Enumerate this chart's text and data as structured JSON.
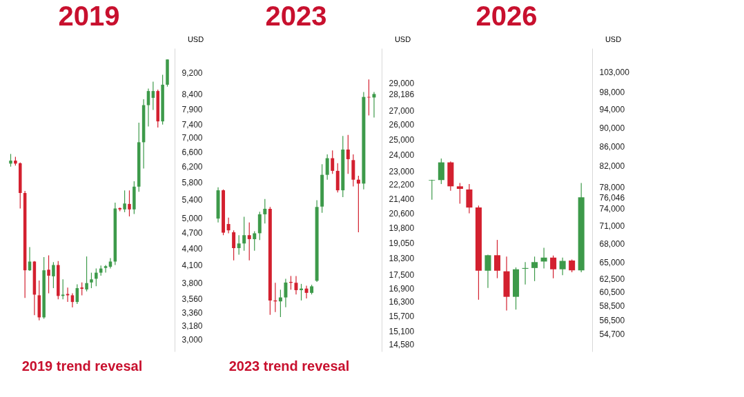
{
  "chart_data": [
    {
      "type": "candlestick",
      "title": "2019",
      "ylabel": "USD",
      "annotations": [
        "2019 trend revesal"
      ],
      "log": true,
      "tick_labels": "y",
      "categories": [
        null,
        null,
        null,
        null,
        null,
        null,
        null,
        null,
        null,
        null,
        null,
        null,
        null,
        null,
        null,
        null,
        null,
        null,
        null,
        null,
        null,
        null,
        null,
        null,
        null,
        null,
        null,
        null,
        null,
        null,
        null,
        null,
        null,
        null
      ],
      "ohlc": [
        [
          6280,
          6540,
          6200,
          6360
        ],
        [
          6360,
          6460,
          6230,
          6280
        ],
        [
          6290,
          6310,
          5200,
          5550
        ],
        [
          5550,
          5600,
          3570,
          4010
        ],
        [
          4010,
          4420,
          4000,
          4160
        ],
        [
          4160,
          4170,
          3320,
          3620
        ],
        [
          3610,
          3840,
          3250,
          3290
        ],
        [
          3290,
          4240,
          3270,
          4010
        ],
        [
          4020,
          4270,
          3640,
          3920
        ],
        [
          3910,
          4150,
          3720,
          4100
        ],
        [
          4100,
          4170,
          3550,
          3600
        ],
        [
          3600,
          3860,
          3550,
          3620
        ],
        [
          3630,
          3730,
          3510,
          3610
        ],
        [
          3610,
          3640,
          3430,
          3510
        ],
        [
          3510,
          3780,
          3480,
          3720
        ],
        [
          3730,
          3810,
          3610,
          3710
        ],
        [
          3700,
          4250,
          3670,
          3800
        ],
        [
          3810,
          3970,
          3720,
          3860
        ],
        [
          3870,
          4040,
          3750,
          3970
        ],
        [
          3970,
          4090,
          3920,
          4040
        ],
        [
          4050,
          4100,
          3970,
          4080
        ],
        [
          4070,
          4220,
          4040,
          4160
        ],
        [
          4160,
          5330,
          4100,
          5200
        ],
        [
          5210,
          5220,
          5140,
          5180
        ],
        [
          5180,
          5610,
          5120,
          5310
        ],
        [
          5300,
          5610,
          5030,
          5180
        ],
        [
          5180,
          5830,
          5080,
          5700
        ],
        [
          5700,
          7460,
          5580,
          6870
        ],
        [
          6870,
          8230,
          6150,
          8030
        ],
        [
          8030,
          8610,
          7340,
          8520
        ],
        [
          8280,
          8860,
          7870,
          8520
        ],
        [
          8520,
          8570,
          7310,
          7500
        ],
        [
          7500,
          9120,
          7400,
          8750
        ],
        [
          8750,
          9730,
          8680,
          9730
        ]
      ],
      "colors": [
        "#3d9a4a",
        "#d3202f",
        "#d3202f",
        "#d3202f",
        "#3d9a4a",
        "#d3202f",
        "#d3202f",
        "#3d9a4a",
        "#d3202f",
        "#3d9a4a",
        "#d3202f",
        "#3d9a4a",
        "#d3202f",
        "#d3202f",
        "#3d9a4a",
        "#d3202f",
        "#3d9a4a",
        "#3d9a4a",
        "#3d9a4a",
        "#3d9a4a",
        "#3d9a4a",
        "#3d9a4a",
        "#3d9a4a",
        "#d3202f",
        "#3d9a4a",
        "#d3202f",
        "#3d9a4a",
        "#3d9a4a",
        "#3d9a4a",
        "#3d9a4a",
        "#3d9a4a",
        "#d3202f",
        "#3d9a4a",
        "#3d9a4a"
      ],
      "ylim": [
        2850,
        10200
      ],
      "yticks": [
        {
          "value": 3000,
          "label": "3,000"
        },
        {
          "value": 3180,
          "label": "3,180"
        },
        {
          "value": 3360,
          "label": "3,360"
        },
        {
          "value": 3560,
          "label": "3,560"
        },
        {
          "value": 3800,
          "label": "3,800"
        },
        {
          "value": 4100,
          "label": "4,100"
        },
        {
          "value": 4400,
          "label": "4,400"
        },
        {
          "value": 4700,
          "label": "4,700"
        },
        {
          "value": 5000,
          "label": "5,000"
        },
        {
          "value": 5400,
          "label": "5,400"
        },
        {
          "value": 5800,
          "label": "5,800"
        },
        {
          "value": 6200,
          "label": "6,200"
        },
        {
          "value": 6600,
          "label": "6,600"
        },
        {
          "value": 7000,
          "label": "7,000"
        },
        {
          "value": 7400,
          "label": "7,400"
        },
        {
          "value": 7900,
          "label": "7,900"
        },
        {
          "value": 8400,
          "label": "8,400"
        },
        {
          "value": 9200,
          "label": "9,200"
        }
      ]
    },
    {
      "type": "candlestick",
      "title": "2023",
      "ylabel": "USD",
      "annotations": [
        "2023 trend revesal"
      ],
      "log": true,
      "tick_labels": "y",
      "categories": [
        null,
        null,
        null,
        null,
        null,
        null,
        null,
        null,
        null,
        null,
        null,
        null,
        null,
        null,
        null,
        null,
        null,
        null,
        null,
        null,
        null,
        null,
        null,
        null,
        null,
        null,
        null,
        null,
        null,
        null,
        null
      ],
      "ohlc": [
        [
          20300,
          22040,
          20090,
          21870
        ],
        [
          21870,
          21920,
          19430,
          19560
        ],
        [
          20010,
          20350,
          19530,
          19680
        ],
        [
          19580,
          19680,
          18180,
          18780
        ],
        [
          18780,
          19430,
          18460,
          19010
        ],
        [
          19010,
          20400,
          18650,
          19430
        ],
        [
          19430,
          20090,
          18180,
          19230
        ],
        [
          19230,
          19630,
          18650,
          19530
        ],
        [
          19530,
          20670,
          19180,
          20530
        ],
        [
          20530,
          21370,
          20040,
          20830
        ],
        [
          20830,
          20930,
          15750,
          16360
        ],
        [
          16360,
          17140,
          15870,
          16320
        ],
        [
          16320,
          16830,
          15660,
          16490
        ],
        [
          16490,
          17320,
          16070,
          17150
        ],
        [
          17180,
          17450,
          16830,
          17140
        ],
        [
          17140,
          17450,
          16620,
          16810
        ],
        [
          16810,
          17090,
          16360,
          16880
        ],
        [
          16880,
          17010,
          16450,
          16690
        ],
        [
          16690,
          17050,
          16620,
          16980
        ],
        [
          17230,
          21310,
          17180,
          20930
        ],
        [
          20950,
          23430,
          20610,
          22780
        ],
        [
          22780,
          24040,
          22490,
          23800
        ],
        [
          23800,
          24290,
          22840,
          23020
        ],
        [
          23020,
          23490,
          21750,
          21870
        ],
        [
          21870,
          25240,
          21480,
          24350
        ],
        [
          24350,
          25310,
          22840,
          23740
        ],
        [
          23680,
          24040,
          22090,
          22490
        ],
        [
          22490,
          22720,
          19580,
          22260
        ],
        [
          22260,
          28330,
          21920,
          27970
        ],
        [
          27970,
          29290,
          26640,
          27930
        ],
        [
          27930,
          28330,
          26500,
          28186
        ]
      ],
      "colors": [
        "#3d9a4a",
        "#d3202f",
        "#d3202f",
        "#d3202f",
        "#3d9a4a",
        "#3d9a4a",
        "#d3202f",
        "#3d9a4a",
        "#3d9a4a",
        "#3d9a4a",
        "#d3202f",
        "#d3202f",
        "#3d9a4a",
        "#3d9a4a",
        "#d3202f",
        "#d3202f",
        "#3d9a4a",
        "#d3202f",
        "#3d9a4a",
        "#3d9a4a",
        "#3d9a4a",
        "#3d9a4a",
        "#d3202f",
        "#d3202f",
        "#3d9a4a",
        "#d3202f",
        "#d3202f",
        "#d3202f",
        "#3d9a4a",
        "#d3202f",
        "#3d9a4a"
      ],
      "ylim": [
        14300,
        31800
      ],
      "yticks": [
        {
          "value": 14580,
          "label": "14,580"
        },
        {
          "value": 15100,
          "label": "15,100"
        },
        {
          "value": 15700,
          "label": "15,700"
        },
        {
          "value": 16300,
          "label": "16,300"
        },
        {
          "value": 16900,
          "label": "16,900"
        },
        {
          "value": 17500,
          "label": "17,500"
        },
        {
          "value": 18300,
          "label": "18,300"
        },
        {
          "value": 19050,
          "label": "19,050"
        },
        {
          "value": 19800,
          "label": "19,800"
        },
        {
          "value": 20600,
          "label": "20,600"
        },
        {
          "value": 21400,
          "label": "21,400"
        },
        {
          "value": 22200,
          "label": "22,200"
        },
        {
          "value": 23000,
          "label": "23,000"
        },
        {
          "value": 24000,
          "label": "24,000"
        },
        {
          "value": 25000,
          "label": "25,000"
        },
        {
          "value": 26000,
          "label": "26,000"
        },
        {
          "value": 27000,
          "label": "27,000"
        },
        {
          "value": 28186,
          "label": "28,186"
        },
        {
          "value": 29000,
          "label": "29,000"
        }
      ]
    },
    {
      "type": "candlestick",
      "title": "2026",
      "ylabel": "USD",
      "log": true,
      "tick_labels": "y",
      "categories": [
        null,
        null,
        null,
        null,
        null,
        null,
        null,
        null,
        null,
        null,
        null,
        null,
        null,
        null,
        null,
        null,
        null
      ],
      "ohlc": [
        [
          79170,
          79360,
          75610,
          79280
        ],
        [
          79280,
          83530,
          78540,
          82740
        ],
        [
          82740,
          82940,
          77250,
          78090
        ],
        [
          78090,
          78720,
          74900,
          77610
        ],
        [
          77500,
          78540,
          73150,
          74190
        ],
        [
          74190,
          74540,
          59380,
          63690
        ],
        [
          63690,
          66210,
          61090,
          66120
        ],
        [
          66120,
          68610,
          62550,
          63690
        ],
        [
          63600,
          65900,
          57850,
          59800
        ],
        [
          59800,
          64200,
          57980,
          63910
        ],
        [
          63990,
          65030,
          61610,
          64110
        ],
        [
          64110,
          65900,
          62110,
          65030
        ],
        [
          65120,
          67320,
          64050,
          65740
        ],
        [
          65740,
          66060,
          62550,
          63910
        ],
        [
          63910,
          65740,
          63000,
          65220
        ],
        [
          65280,
          65440,
          63450,
          63750
        ],
        [
          63750,
          78720,
          63450,
          76046
        ]
      ],
      "colors": [
        "#3d9a4a",
        "#3d9a4a",
        "#d3202f",
        "#d3202f",
        "#d3202f",
        "#d3202f",
        "#3d9a4a",
        "#d3202f",
        "#d3202f",
        "#3d9a4a",
        "#3d9a4a",
        "#3d9a4a",
        "#3d9a4a",
        "#d3202f",
        "#3d9a4a",
        "#d3202f",
        "#3d9a4a"
      ],
      "ylim": [
        52400,
        109000
      ],
      "yticks": [
        {
          "value": 54700,
          "label": "54,700"
        },
        {
          "value": 56500,
          "label": "56,500"
        },
        {
          "value": 58500,
          "label": "58,500"
        },
        {
          "value": 60500,
          "label": "60,500"
        },
        {
          "value": 62500,
          "label": "62,500"
        },
        {
          "value": 65000,
          "label": "65,000"
        },
        {
          "value": 68000,
          "label": "68,000"
        },
        {
          "value": 71000,
          "label": "71,000"
        },
        {
          "value": 74000,
          "label": "74,000"
        },
        {
          "value": 76046,
          "label": "76,046"
        },
        {
          "value": 78000,
          "label": "78,000"
        },
        {
          "value": 82000,
          "label": "82,000"
        },
        {
          "value": 86000,
          "label": "86,000"
        },
        {
          "value": 90000,
          "label": "90,000"
        },
        {
          "value": 94000,
          "label": "94,000"
        },
        {
          "value": 98000,
          "label": "98,000"
        },
        {
          "value": 103000,
          "label": "103,000"
        }
      ]
    }
  ]
}
